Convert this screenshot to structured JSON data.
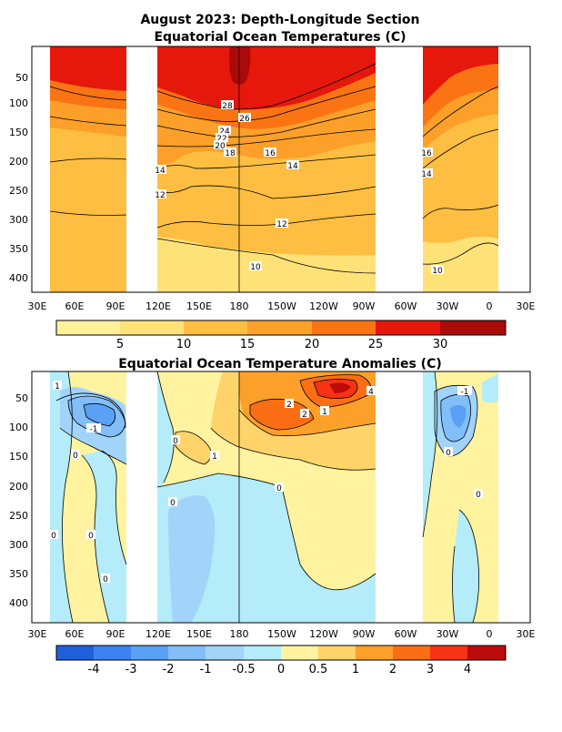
{
  "chart_data": [
    {
      "type": "heatmap",
      "title": "August 2023: Depth-Longitude Section",
      "subtitle": "Equatorial Ocean Temperatures (C)",
      "x_ticks": [
        "30E",
        "60E",
        "90E",
        "120E",
        "150E",
        "180",
        "150W",
        "120W",
        "90W",
        "60W",
        "30W",
        "0",
        "30E"
      ],
      "y_ticks": [
        "50",
        "100",
        "150",
        "200",
        "250",
        "300",
        "350",
        "400"
      ],
      "ylim": [
        435,
        15
      ],
      "land_gaps_lon": [
        [
          97,
          120
        ],
        [
          278,
          313
        ]
      ],
      "colorbar": {
        "labels": [
          "5",
          "10",
          "15",
          "20",
          "25",
          "30"
        ],
        "colors": [
          "#fff19a",
          "#fee278",
          "#fdbe42",
          "#fca02a",
          "#fb7414",
          "#e5180b",
          "#aa0a0a"
        ]
      },
      "contour_labels": [
        "28",
        "26",
        "24",
        "22",
        "20",
        "18",
        "16",
        "14",
        "12",
        "10"
      ]
    },
    {
      "type": "heatmap",
      "title": "Equatorial Ocean Temperature Anomalies (C)",
      "x_ticks": [
        "30E",
        "60E",
        "90E",
        "120E",
        "150E",
        "180",
        "150W",
        "120W",
        "90W",
        "60W",
        "30W",
        "0",
        "30E"
      ],
      "y_ticks": [
        "50",
        "100",
        "150",
        "200",
        "250",
        "300",
        "350",
        "400"
      ],
      "ylim": [
        435,
        15
      ],
      "land_gaps_lon": [
        [
          97,
          120
        ],
        [
          278,
          313
        ]
      ],
      "colorbar": {
        "labels": [
          "-4",
          "-3",
          "-2",
          "-1",
          "-0.5",
          "0",
          "0.5",
          "1",
          "2",
          "3",
          "4"
        ],
        "colors": [
          "#1e5fdc",
          "#3c82f0",
          "#5aa0f5",
          "#82bef8",
          "#a2d4fa",
          "#b4ecf9",
          "#fff3a0",
          "#fed46a",
          "#fca02a",
          "#fb6e14",
          "#f83214",
          "#bd0a0a"
        ]
      },
      "contour_labels": [
        "-1",
        "-1",
        "0",
        "0",
        "0",
        "0",
        "0",
        "0",
        "1",
        "1",
        "2",
        "2",
        "4"
      ]
    }
  ]
}
